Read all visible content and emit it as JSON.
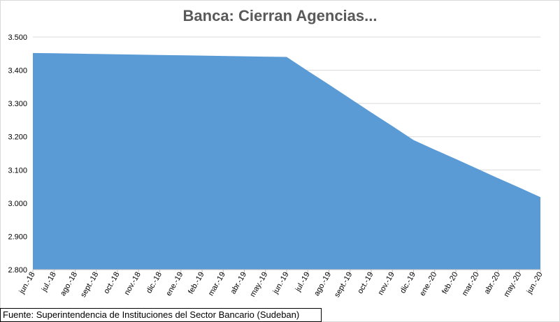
{
  "chart_data": {
    "type": "area",
    "title": "Banca: Cierran Agencias...",
    "xlabel": "",
    "ylabel": "",
    "ylim": [
      2800,
      3500
    ],
    "y_ticks": [
      2800,
      2900,
      3000,
      3100,
      3200,
      3300,
      3400,
      3500
    ],
    "y_tick_labels": [
      "2.800",
      "2.900",
      "3.000",
      "3.100",
      "3.200",
      "3.300",
      "3.400",
      "3.500"
    ],
    "categories": [
      "jun.-18",
      "jul.-18",
      "ago.-18",
      "sept.-18",
      "oct.-18",
      "nov.-18",
      "dic.-18",
      "ene.-19",
      "feb.-19",
      "mar.-19",
      "abr.-19",
      "may.-19",
      "jun.-19",
      "jul.-19",
      "ago.-19",
      "sept.-19",
      "oct.-19",
      "nov.-19",
      "dic.-19",
      "ene.-20",
      "feb.-20",
      "mar.-20",
      "abr.-20",
      "may.-20",
      "jun.-20"
    ],
    "values": [
      3452,
      3451,
      3450,
      3449,
      3448,
      3447,
      3446,
      3445,
      3444,
      3443,
      3442,
      3441,
      3440,
      3398,
      3357,
      3315,
      3273,
      3232,
      3190,
      3161,
      3133,
      3104,
      3075,
      3047,
      3018
    ],
    "grid": true,
    "legend": "none",
    "fill_color": "#5b9bd5",
    "grid_color": "#d9d9d9",
    "axis_color": "#bfbfbf"
  },
  "footer": {
    "source": "Fuente: Superintendencia de Instituciones del Sector Bancario (Sudeban)"
  }
}
